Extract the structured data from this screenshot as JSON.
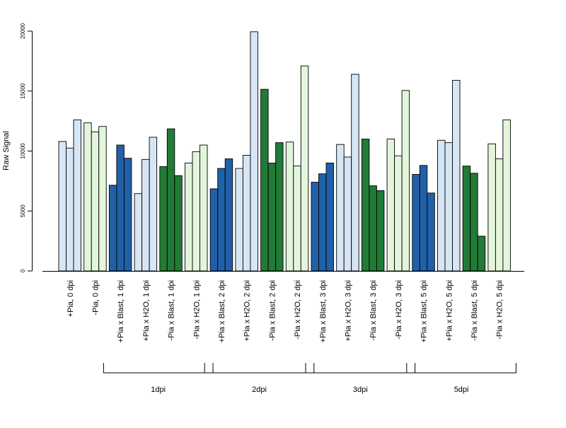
{
  "chart_data": {
    "type": "bar",
    "title": "",
    "xlabel": "",
    "ylabel": "Raw Signal",
    "ylim": [
      0,
      20000
    ],
    "yticks": [
      0,
      5000,
      10000,
      15000,
      20000
    ],
    "grid": false,
    "legend": "none",
    "colors": {
      "light_blue": "#d6e6f5",
      "light_green": "#e3f6dc",
      "dark_blue": "#2060a8",
      "dark_green": "#217a36",
      "stroke": "#000000"
    },
    "categories": [
      {
        "label": "+Pia, 0 dpi",
        "color": "light_blue",
        "values": [
          10800,
          10250,
          12600
        ]
      },
      {
        "label": "-Pia, 0 dpi",
        "color": "light_green",
        "values": [
          12350,
          11600,
          12050
        ]
      },
      {
        "label": "+Pia x Blast, 1 dpi",
        "color": "dark_blue",
        "values": [
          7150,
          10500,
          9400
        ]
      },
      {
        "label": "+Pia x H2O, 1 dpi",
        "color": "light_blue",
        "values": [
          6450,
          9300,
          11150
        ]
      },
      {
        "label": "-Pia x Blast, 1 dpi",
        "color": "dark_green",
        "values": [
          8700,
          11850,
          7950
        ]
      },
      {
        "label": "-Pia x H2O, 1 dpi",
        "color": "light_green",
        "values": [
          9000,
          9950,
          10500
        ]
      },
      {
        "label": "+Pia x Blast, 2 dpi",
        "color": "dark_blue",
        "values": [
          6850,
          8550,
          9350
        ]
      },
      {
        "label": "+Pia x H2O, 2 dpi",
        "color": "light_blue",
        "values": [
          8550,
          9650,
          19950
        ]
      },
      {
        "label": "-Pia x Blast, 2 dpi",
        "color": "dark_green",
        "values": [
          15150,
          9000,
          10700
        ]
      },
      {
        "label": "-Pia x H2O, 2 dpi",
        "color": "light_green",
        "values": [
          10750,
          8750,
          17100
        ]
      },
      {
        "label": "+Pia x Blast, 3 dpi",
        "color": "dark_blue",
        "values": [
          7400,
          8100,
          9000
        ]
      },
      {
        "label": "+Pia x H2O, 3 dpi",
        "color": "light_blue",
        "values": [
          10550,
          9500,
          16400
        ]
      },
      {
        "label": "-Pia x Blast, 3 dpi",
        "color": "dark_green",
        "values": [
          11000,
          7100,
          6700
        ]
      },
      {
        "label": "-Pia x H2O, 3 dpi",
        "color": "light_green",
        "values": [
          11000,
          9600,
          15050
        ]
      },
      {
        "label": "+Pia x Blast, 5 dpi",
        "color": "dark_blue",
        "values": [
          8050,
          8800,
          6500
        ]
      },
      {
        "label": "+Pia x H2O, 5 dpi",
        "color": "light_blue",
        "values": [
          10900,
          10700,
          15900
        ]
      },
      {
        "label": "-Pia x Blast, 5 dpi",
        "color": "dark_green",
        "values": [
          8750,
          8150,
          2900
        ]
      },
      {
        "label": "-Pia x H2O, 5 dpi",
        "color": "light_green",
        "values": [
          10600,
          9350,
          12600
        ]
      }
    ],
    "groups": [
      {
        "label": "1dpi",
        "from": 2,
        "to": 5
      },
      {
        "label": "2dpi",
        "from": 6,
        "to": 9
      },
      {
        "label": "3dpi",
        "from": 10,
        "to": 13
      },
      {
        "label": "5dpi",
        "from": 14,
        "to": 17
      }
    ]
  }
}
